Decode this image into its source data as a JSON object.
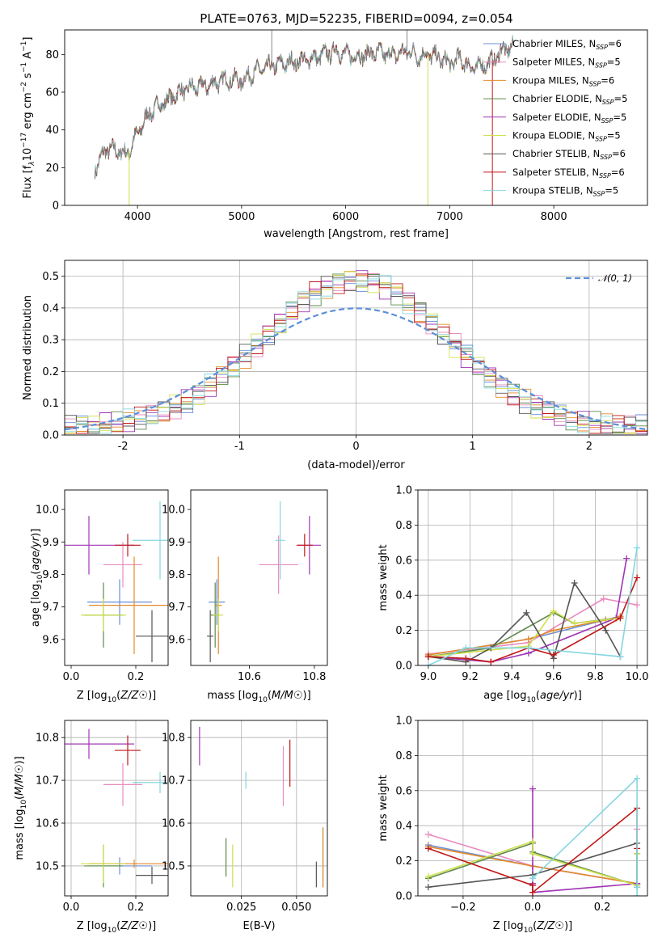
{
  "title": "PLATE=0763, MJD=52235, FIBERID=0094, z=0.054",
  "colors": {
    "Chabrier MILES": "#6a8fd6",
    "Salpeter MILES": "#e88cc0",
    "Kroupa MILES": "#e58a2a",
    "Chabrier ELODIE": "#5e8a4a",
    "Salpeter ELODIE": "#a036b5",
    "Kroupa ELODIE": "#cfe04c",
    "Chabrier STELIB": "#555555",
    "Salpeter STELIB": "#c01818",
    "Kroupa STELIB": "#86d6e0"
  },
  "chart_data": [
    {
      "id": "spectrum",
      "type": "line",
      "title": "PLATE=0763, MJD=52235, FIBERID=0094, z=0.054",
      "xlabel": "wavelength [Angstrom, rest frame]",
      "ylabel_parts": [
        "Flux [f",
        "λ",
        "10",
        "−17",
        " erg cm",
        "−2",
        " s",
        "−1",
        " A",
        "−1",
        "]"
      ],
      "xlim": [
        3300,
        8900
      ],
      "ylim": [
        0,
        93
      ],
      "xticks": [
        4000,
        5000,
        6000,
        7000,
        8000
      ],
      "yticks": [
        0,
        20,
        40,
        60,
        80
      ],
      "grid": false,
      "legend_position": "upper right",
      "legend": [
        {
          "name": "Chabrier MILES",
          "nssp": "6"
        },
        {
          "name": "Salpeter MILES",
          "nssp": "5"
        },
        {
          "name": "Kroupa MILES",
          "nssp": "6"
        },
        {
          "name": "Chabrier ELODIE",
          "nssp": "5"
        },
        {
          "name": "Salpeter ELODIE",
          "nssp": "5"
        },
        {
          "name": "Kroupa ELODIE",
          "nssp": "5"
        },
        {
          "name": "Chabrier STELIB",
          "nssp": "6"
        },
        {
          "name": "Salpeter STELIB",
          "nssp": "6"
        },
        {
          "name": "Kroupa STELIB",
          "nssp": "5"
        }
      ],
      "nssp_label": "N",
      "nssp_sub": "SSP",
      "continuum": {
        "x": [
          3600,
          3700,
          3800,
          3900,
          4000,
          4100,
          4200,
          4300,
          4400,
          4500,
          4600,
          4700,
          4800,
          4900,
          5000,
          5100,
          5200,
          5300,
          5400,
          5500,
          5600,
          5700,
          5800,
          5900,
          6000,
          6100,
          6200,
          6300,
          6400,
          6500,
          6600,
          6700,
          6800,
          6900,
          7000,
          7100,
          7200,
          7300,
          7400,
          7500,
          7600
        ],
        "y": [
          20,
          30,
          29,
          27,
          38,
          48,
          53,
          56,
          60,
          62,
          63,
          64,
          66,
          67,
          66,
          70,
          72,
          74,
          75,
          76,
          77,
          78,
          80,
          82,
          80,
          79,
          80,
          81,
          80,
          80,
          82,
          79,
          80,
          78,
          75,
          78,
          73,
          74,
          76,
          82,
          84
        ]
      },
      "spikes": [
        {
          "x": 3920,
          "low": 0
        },
        {
          "x": 6790,
          "low": 0
        },
        {
          "x": 7410,
          "low": 0
        },
        {
          "x": 5290,
          "high": 95
        },
        {
          "x": 6590,
          "high": 96
        }
      ]
    },
    {
      "id": "residuals",
      "type": "histogram",
      "xlabel": "(data-model)/error",
      "ylabel": "Normed distribution",
      "xlim": [
        -2.5,
        2.5
      ],
      "ylim": [
        0,
        0.55
      ],
      "xticks": [
        -2,
        -1,
        0,
        1,
        2
      ],
      "yticks": [
        0.0,
        0.1,
        0.2,
        0.3,
        0.4,
        0.5
      ],
      "grid": true,
      "legend_position": "upper right",
      "reference": {
        "name": "𝒩(0, 1)",
        "mu": 0,
        "sigma": 1
      },
      "bin_width": 0.1,
      "bin_start": -2.5
    },
    {
      "id": "age-z",
      "type": "scatter",
      "xlabel": "Z [log10(Z/Z☉)]",
      "ylabel": "age  [log10(age/yr)]",
      "xlim": [
        -0.02,
        0.3
      ],
      "ylim": [
        9.52,
        10.06
      ],
      "xticks": [
        0.0,
        0.2
      ],
      "yticks": [
        9.6,
        9.7,
        9.8,
        9.9,
        10.0
      ],
      "grid": false,
      "points": [
        {
          "model": "Chabrier MILES",
          "x": 0.15,
          "xerr": 0.1,
          "y": 9.715,
          "yerr": 0.07
        },
        {
          "model": "Salpeter MILES",
          "x": 0.16,
          "xerr": 0.06,
          "y": 9.83,
          "yerr": 0.07
        },
        {
          "model": "Kroupa MILES",
          "x": 0.195,
          "xerr": 0.14,
          "y": 9.705,
          "yerr": 0.15
        },
        {
          "model": "Chabrier ELODIE",
          "x": 0.1,
          "xerr": 0.06,
          "y": 9.675,
          "yerr": 0.1
        },
        {
          "model": "Salpeter ELODIE",
          "x": 0.055,
          "xerr": 0.14,
          "y": 9.89,
          "yerr": 0.09
        },
        {
          "model": "Kroupa ELODIE",
          "x": 0.1,
          "xerr": 0.07,
          "y": 9.675,
          "yerr": 0.05
        },
        {
          "model": "Chabrier STELIB",
          "x": 0.25,
          "xerr": 0.05,
          "y": 9.61,
          "yerr": 0.08
        },
        {
          "model": "Salpeter STELIB",
          "x": 0.175,
          "xerr": 0.04,
          "y": 9.89,
          "yerr": 0.035
        },
        {
          "model": "Kroupa STELIB",
          "x": 0.275,
          "xerr": 0.085,
          "y": 9.905,
          "yerr": 0.12
        }
      ]
    },
    {
      "id": "age-mass",
      "type": "scatter",
      "xlabel": "mass [log10(M/M☉)]",
      "ylabel": "",
      "xlim": [
        10.42,
        10.84
      ],
      "ylim": [
        9.52,
        10.06
      ],
      "xticks": [
        10.6,
        10.8
      ],
      "yticks": [
        9.6,
        9.7,
        9.8,
        9.9,
        10.0
      ],
      "grid": false,
      "points": [
        {
          "model": "Chabrier MILES",
          "x": 10.5,
          "xerr": 0.025,
          "y": 9.715,
          "yerr": 0.07
        },
        {
          "model": "Salpeter MILES",
          "x": 10.69,
          "xerr": 0.06,
          "y": 9.83,
          "yerr": 0.09
        },
        {
          "model": "Kroupa MILES",
          "x": 10.505,
          "xerr": 0.01,
          "y": 9.705,
          "yerr": 0.15
        },
        {
          "model": "Chabrier ELODIE",
          "x": 10.495,
          "xerr": 0.015,
          "y": 9.675,
          "yerr": 0.1
        },
        {
          "model": "Salpeter ELODIE",
          "x": 10.785,
          "xerr": 0.035,
          "y": 9.89,
          "yerr": 0.09
        },
        {
          "model": "Kroupa ELODIE",
          "x": 10.505,
          "xerr": 0.015,
          "y": 9.675,
          "yerr": 0.05
        },
        {
          "model": "Chabrier STELIB",
          "x": 10.48,
          "xerr": 0.01,
          "y": 9.61,
          "yerr": 0.08
        },
        {
          "model": "Salpeter STELIB",
          "x": 10.77,
          "xerr": 0.025,
          "y": 9.89,
          "yerr": 0.035
        },
        {
          "model": "Kroupa STELIB",
          "x": 10.695,
          "xerr": 0.015,
          "y": 9.905,
          "yerr": 0.12
        }
      ]
    },
    {
      "id": "weight-age",
      "type": "line",
      "xlabel": "age  [log10(age/yr)]",
      "ylabel": "mass weight",
      "xlim": [
        8.95,
        10.05
      ],
      "ylim": [
        0,
        1.0
      ],
      "xticks": [
        9.0,
        9.2,
        9.4,
        9.6,
        9.8,
        10.0
      ],
      "yticks": [
        0.0,
        0.2,
        0.4,
        0.6,
        0.8,
        1.0
      ],
      "grid": true,
      "series": [
        {
          "model": "Chabrier MILES",
          "x": [
            9.0,
            9.48,
            9.85,
            9.92
          ],
          "y": [
            0.06,
            0.15,
            0.26,
            0.28
          ]
        },
        {
          "model": "Salpeter MILES",
          "x": [
            9.0,
            9.48,
            9.84,
            10.0
          ],
          "y": [
            0.065,
            0.13,
            0.38,
            0.345
          ]
        },
        {
          "model": "Kroupa MILES",
          "x": [
            9.0,
            9.48,
            9.6,
            9.85,
            9.92
          ],
          "y": [
            0.06,
            0.15,
            0.2,
            0.26,
            0.28
          ]
        },
        {
          "model": "Chabrier ELODIE",
          "x": [
            9.0,
            9.3,
            9.6,
            9.7,
            9.9
          ],
          "y": [
            0.05,
            0.1,
            0.3,
            0.24,
            0.27
          ]
        },
        {
          "model": "Salpeter ELODIE",
          "x": [
            9.0,
            9.3,
            9.48,
            9.9,
            9.95
          ],
          "y": [
            0.05,
            0.02,
            0.07,
            0.27,
            0.61
          ]
        },
        {
          "model": "Kroupa ELODIE",
          "x": [
            9.0,
            9.48,
            9.6,
            9.7,
            9.92
          ],
          "y": [
            0.05,
            0.11,
            0.31,
            0.24,
            0.27
          ]
        },
        {
          "model": "Chabrier STELIB",
          "x": [
            9.0,
            9.18,
            9.3,
            9.47,
            9.6,
            9.7,
            9.85,
            9.92
          ],
          "y": [
            0.05,
            0.02,
            0.1,
            0.3,
            0.04,
            0.47,
            0.2,
            0.05
          ]
        },
        {
          "model": "Salpeter STELIB",
          "x": [
            9.0,
            9.18,
            9.3,
            9.48,
            9.6,
            9.92,
            10.0
          ],
          "y": [
            0.05,
            0.04,
            0.02,
            0.1,
            0.06,
            0.27,
            0.5
          ]
        },
        {
          "model": "Kroupa STELIB",
          "x": [
            9.0,
            9.18,
            9.48,
            9.92,
            10.0
          ],
          "y": [
            0.0,
            0.1,
            0.1,
            0.05,
            0.67
          ]
        }
      ]
    },
    {
      "id": "mass-z",
      "type": "scatter",
      "xlabel": "Z [log10(Z/Z☉)]",
      "ylabel": "mass [log10(M/M☉)]",
      "xlim": [
        -0.02,
        0.3
      ],
      "ylim": [
        10.43,
        10.84
      ],
      "xticks": [
        0.0,
        0.2
      ],
      "yticks": [
        10.5,
        10.6,
        10.7,
        10.8
      ],
      "grid": true,
      "points": [
        {
          "model": "Chabrier MILES",
          "x": 0.15,
          "xerr": 0.1,
          "y": 10.5,
          "yerr": 0.02
        },
        {
          "model": "Salpeter MILES",
          "x": 0.16,
          "xerr": 0.06,
          "y": 10.69,
          "yerr": 0.05
        },
        {
          "model": "Kroupa MILES",
          "x": 0.195,
          "xerr": 0.14,
          "y": 10.505,
          "yerr": 0.01
        },
        {
          "model": "Chabrier ELODIE",
          "x": 0.1,
          "xerr": 0.06,
          "y": 10.5,
          "yerr": 0.05
        },
        {
          "model": "Salpeter ELODIE",
          "x": 0.055,
          "xerr": 0.14,
          "y": 10.785,
          "yerr": 0.035
        },
        {
          "model": "Kroupa ELODIE",
          "x": 0.1,
          "xerr": 0.07,
          "y": 10.505,
          "yerr": 0.045
        },
        {
          "model": "Chabrier STELIB",
          "x": 0.25,
          "xerr": 0.05,
          "y": 10.478,
          "yerr": 0.02
        },
        {
          "model": "Salpeter STELIB",
          "x": 0.175,
          "xerr": 0.04,
          "y": 10.77,
          "yerr": 0.035
        },
        {
          "model": "Kroupa STELIB",
          "x": 0.275,
          "xerr": 0.085,
          "y": 10.695,
          "yerr": 0.025
        }
      ]
    },
    {
      "id": "mass-ebv",
      "type": "scatter",
      "xlabel": "E(B-V)",
      "ylabel": "",
      "xlim": [
        0.002,
        0.064
      ],
      "ylim": [
        10.43,
        10.84
      ],
      "xticks": [
        0.025,
        0.05
      ],
      "xticklabels": [
        "0.025",
        "0.050"
      ],
      "yticks": [
        10.5,
        10.6,
        10.7,
        10.8
      ],
      "grid": true,
      "points": [
        {
          "model": "Chabrier MILES",
          "x": 0.062,
          "xerr": 0,
          "y": 10.52,
          "yerr": 0.07
        },
        {
          "model": "Salpeter MILES",
          "x": 0.044,
          "xerr": 0,
          "y": 10.71,
          "yerr": 0.07
        },
        {
          "model": "Kroupa MILES",
          "x": 0.062,
          "xerr": 0,
          "y": 10.52,
          "yerr": 0.07
        },
        {
          "model": "Chabrier ELODIE",
          "x": 0.018,
          "xerr": 0,
          "y": 10.52,
          "yerr": 0.045
        },
        {
          "model": "Salpeter ELODIE",
          "x": 0.006,
          "xerr": 0,
          "y": 10.78,
          "yerr": 0.045
        },
        {
          "model": "Kroupa ELODIE",
          "x": 0.021,
          "xerr": 0,
          "y": 10.5,
          "yerr": 0.05
        },
        {
          "model": "Chabrier STELIB",
          "x": 0.059,
          "xerr": 0,
          "y": 10.48,
          "yerr": 0.03
        },
        {
          "model": "Salpeter STELIB",
          "x": 0.047,
          "xerr": 0,
          "y": 10.74,
          "yerr": 0.055
        },
        {
          "model": "Kroupa STELIB",
          "x": 0.027,
          "xerr": 0,
          "y": 10.7,
          "yerr": 0.02
        }
      ]
    },
    {
      "id": "weight-z",
      "type": "line",
      "xlabel": "Z [log10(Z/Z☉)]",
      "ylabel": "mass weight",
      "xlim": [
        -0.33,
        0.33
      ],
      "ylim": [
        0,
        1.0
      ],
      "xticks": [
        -0.2,
        0.0,
        0.2
      ],
      "xticklabels": [
        "−0.2",
        "0.0",
        "0.2"
      ],
      "yticks": [
        0.0,
        0.2,
        0.4,
        0.6,
        0.8,
        1.0
      ],
      "grid": true,
      "series": [
        {
          "model": "Chabrier MILES",
          "x": [
            -0.3,
            0.0,
            0.3
          ],
          "y": [
            0.29,
            0.17,
            0.07
          ]
        },
        {
          "model": "Salpeter MILES",
          "x": [
            -0.3,
            0.0,
            0.3,
            0.3
          ],
          "y": [
            0.35,
            0.17,
            0.07,
            0.38
          ]
        },
        {
          "model": "Kroupa MILES",
          "x": [
            -0.3,
            0.0,
            0.3
          ],
          "y": [
            0.28,
            0.17,
            0.07
          ]
        },
        {
          "model": "Chabrier ELODIE",
          "x": [
            -0.3,
            0.0,
            0.0,
            0.3,
            0.3
          ],
          "y": [
            0.1,
            0.3,
            0.25,
            0.06,
            0.24
          ]
        },
        {
          "model": "Salpeter ELODIE",
          "x": [
            0.0,
            0.0,
            0.0,
            0.3,
            0.3
          ],
          "y": [
            0.61,
            0.07,
            0.02,
            0.07,
            0.07
          ]
        },
        {
          "model": "Kroupa ELODIE",
          "x": [
            -0.3,
            0.0,
            0.0,
            0.3,
            0.3
          ],
          "y": [
            0.11,
            0.31,
            0.24,
            0.06,
            0.24
          ]
        },
        {
          "model": "Chabrier STELIB",
          "x": [
            -0.3,
            0.0,
            0.3,
            0.3
          ],
          "y": [
            0.05,
            0.12,
            0.3,
            0.05
          ]
        },
        {
          "model": "Salpeter STELIB",
          "x": [
            -0.3,
            0.0,
            0.0,
            0.3,
            0.3
          ],
          "y": [
            0.27,
            0.06,
            0.02,
            0.5,
            0.27
          ]
        },
        {
          "model": "Kroupa STELIB",
          "x": [
            0.0,
            0.0,
            0.3,
            0.3,
            0.3
          ],
          "y": [
            0.1,
            0.1,
            0.67,
            0.05,
            0.0
          ]
        }
      ]
    }
  ]
}
